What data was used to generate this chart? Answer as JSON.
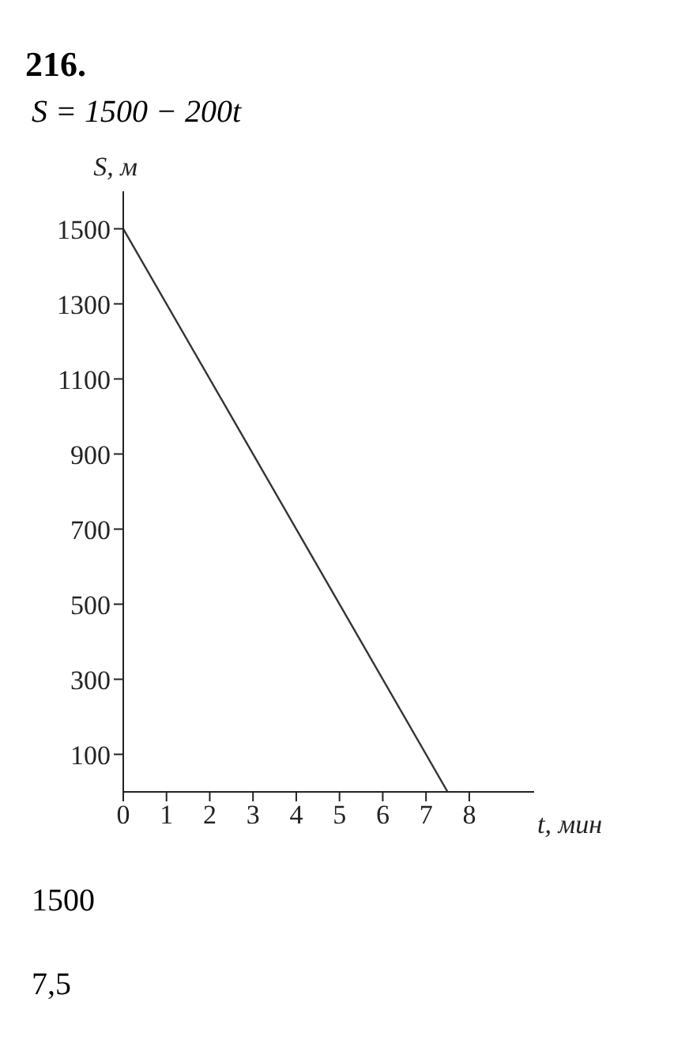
{
  "chart_data": {
    "type": "line",
    "title": "216.",
    "subtitle": "S = 1500 − 200t",
    "xlabel": "t, мин",
    "ylabel": "S, м",
    "x": [
      0,
      7.5
    ],
    "series": [
      {
        "color": "#333333",
        "values": [
          1500,
          0
        ]
      }
    ],
    "xlim": [
      0,
      9.5
    ],
    "xticks": [
      0,
      1,
      2,
      3,
      4,
      5,
      6,
      7,
      8
    ],
    "ylim": [
      0,
      1600
    ],
    "yticks": [
      100,
      300,
      500,
      700,
      900,
      1100,
      1300,
      1500
    ],
    "grid": false,
    "marker": "none",
    "line_style": "solid",
    "annotations": [
      "1500",
      "7,5"
    ]
  }
}
